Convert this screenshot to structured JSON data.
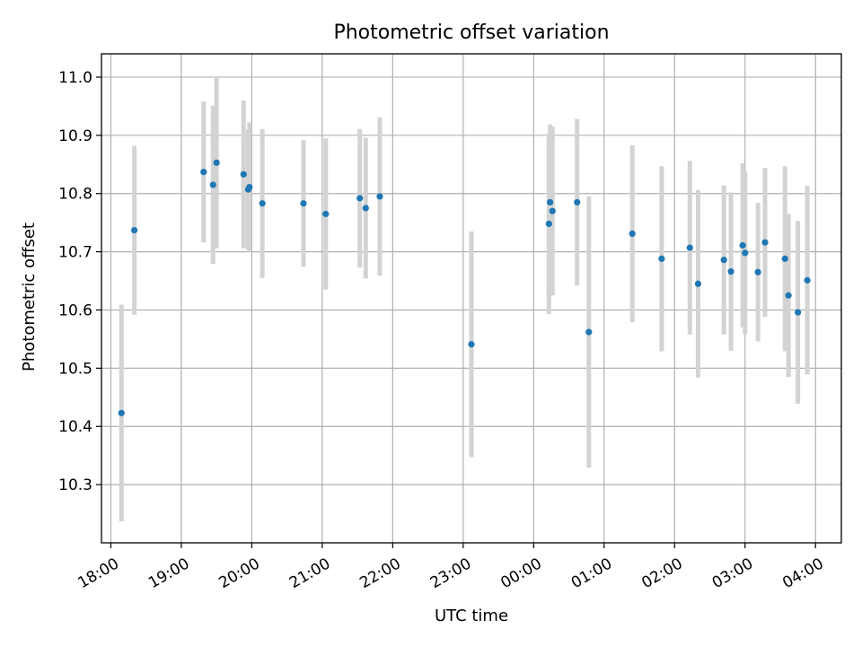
{
  "chart_data": {
    "type": "scatter",
    "title": "Photometric offset variation",
    "xlabel": "UTC time",
    "ylabel": "Photometric offset",
    "x_axis": {
      "kind": "time",
      "ticks": [
        "18:00",
        "19:00",
        "20:00",
        "21:00",
        "22:00",
        "23:00",
        "00:00",
        "01:00",
        "02:00",
        "03:00",
        "04:00"
      ],
      "xlim": [
        "17:52",
        "04:22"
      ]
    },
    "y_axis": {
      "ticks": [
        10.3,
        10.4,
        10.5,
        10.6,
        10.7,
        10.8,
        10.9,
        11.0
      ],
      "ylim": [
        10.2,
        11.04
      ]
    },
    "grid": true,
    "error_bar_color": "#d3d3d3",
    "point_color": "#1f77b4",
    "points": [
      {
        "time": "18:09",
        "y": 10.423,
        "err": 0.186
      },
      {
        "time": "18:20",
        "y": 10.737,
        "err": 0.145
      },
      {
        "time": "19:19",
        "y": 10.837,
        "err": 0.121
      },
      {
        "time": "19:27",
        "y": 10.815,
        "err": 0.136
      },
      {
        "time": "19:30",
        "y": 10.853,
        "err": 0.147
      },
      {
        "time": "19:53",
        "y": 10.833,
        "err": 0.127
      },
      {
        "time": "19:57",
        "y": 10.807,
        "err": 0.103
      },
      {
        "time": "19:58",
        "y": 10.811,
        "err": 0.111
      },
      {
        "time": "20:09",
        "y": 10.783,
        "err": 0.128
      },
      {
        "time": "20:44",
        "y": 10.783,
        "err": 0.109
      },
      {
        "time": "21:03",
        "y": 10.765,
        "err": 0.13
      },
      {
        "time": "21:32",
        "y": 10.792,
        "err": 0.119
      },
      {
        "time": "21:37",
        "y": 10.775,
        "err": 0.121
      },
      {
        "time": "21:49",
        "y": 10.795,
        "err": 0.136
      },
      {
        "time": "23:07",
        "y": 10.541,
        "err": 0.194
      },
      {
        "time": "00:13",
        "y": 10.748,
        "err": 0.155
      },
      {
        "time": "00:14",
        "y": 10.785,
        "err": 0.134
      },
      {
        "time": "00:16",
        "y": 10.77,
        "err": 0.145
      },
      {
        "time": "00:37",
        "y": 10.785,
        "err": 0.143
      },
      {
        "time": "00:47",
        "y": 10.562,
        "err": 0.233
      },
      {
        "time": "01:24",
        "y": 10.731,
        "err": 0.152
      },
      {
        "time": "01:49",
        "y": 10.688,
        "err": 0.159
      },
      {
        "time": "02:13",
        "y": 10.707,
        "err": 0.149
      },
      {
        "time": "02:20",
        "y": 10.645,
        "err": 0.161
      },
      {
        "time": "02:42",
        "y": 10.686,
        "err": 0.128
      },
      {
        "time": "02:48",
        "y": 10.666,
        "err": 0.136
      },
      {
        "time": "02:58",
        "y": 10.711,
        "err": 0.141
      },
      {
        "time": "03:00",
        "y": 10.698,
        "err": 0.14
      },
      {
        "time": "03:11",
        "y": 10.665,
        "err": 0.119
      },
      {
        "time": "03:17",
        "y": 10.716,
        "err": 0.128
      },
      {
        "time": "03:34",
        "y": 10.688,
        "err": 0.159
      },
      {
        "time": "03:37",
        "y": 10.625,
        "err": 0.14
      },
      {
        "time": "03:45",
        "y": 10.596,
        "err": 0.157
      },
      {
        "time": "03:53",
        "y": 10.651,
        "err": 0.162
      }
    ]
  }
}
